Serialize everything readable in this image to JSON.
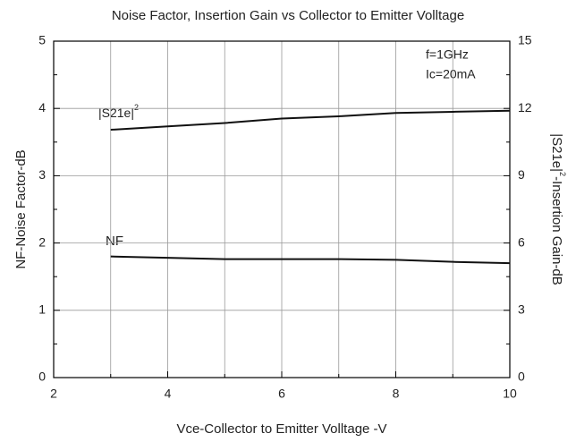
{
  "chart_data": {
    "type": "line",
    "title": "Noise Factor, Insertion Gain vs Collector to Emitter Volltage",
    "xlabel": "Vce-Collector to Emitter Volltage -V",
    "ylabel": "NF-Noise Factor-dB",
    "y2label": {
      "pre": "|S21e|",
      "sup": "2",
      "post": "-Insertion Gain-dB"
    },
    "x": [
      3,
      4,
      5,
      6,
      7,
      8,
      9,
      10
    ],
    "series": [
      {
        "name": "|S21e|",
        "name_sup": "2",
        "color": "#111111",
        "axis": "y2",
        "values": [
          11.05,
          11.2,
          11.35,
          11.55,
          11.65,
          11.8,
          11.85,
          11.9
        ]
      },
      {
        "name": "NF",
        "color": "#111111",
        "values": [
          1.8,
          1.78,
          1.76,
          1.76,
          1.76,
          1.75,
          1.72,
          1.7
        ]
      }
    ],
    "annotations": [
      "f=1GHz",
      "Ic=20mA"
    ],
    "xlim": [
      2,
      10
    ],
    "xticks": [
      2,
      4,
      6,
      8,
      10
    ],
    "xminor": [
      3,
      5,
      7,
      9
    ],
    "ylim": [
      0,
      5
    ],
    "yticks": [
      0,
      1,
      2,
      3,
      4,
      5
    ],
    "yminor": [
      0.5,
      1.5,
      2.5,
      3.5,
      4.5
    ],
    "y2lim": [
      0,
      15
    ],
    "y2ticks": [
      0,
      3,
      6,
      9,
      12,
      15
    ],
    "grid": true
  }
}
